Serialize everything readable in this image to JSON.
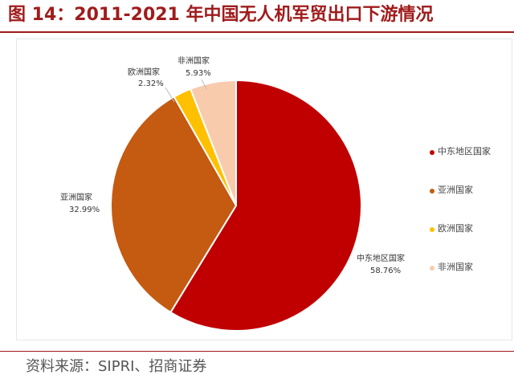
{
  "header": {
    "title": "图 14：2011-2021 年中国无人机军贸出口下游情况"
  },
  "chart_data": {
    "type": "pie",
    "title": "",
    "slices": [
      {
        "name": "中东地区国家",
        "value": 58.76,
        "label": "58.76%",
        "color": "#c00000"
      },
      {
        "name": "亚洲国家",
        "value": 32.99,
        "label": "32.99%",
        "color": "#c55a11"
      },
      {
        "name": "欧洲国家",
        "value": 2.32,
        "label": "2.32%",
        "color": "#ffc000"
      },
      {
        "name": "非洲国家",
        "value": 5.93,
        "label": "5.93%",
        "color": "#f8cbad"
      }
    ],
    "legend_position": "right",
    "start_angle": "12 o'clock, clockwise"
  },
  "footer": {
    "source": "资料来源：SIPRI、招商证券"
  },
  "colors": {
    "accent": "#a01c1c"
  }
}
